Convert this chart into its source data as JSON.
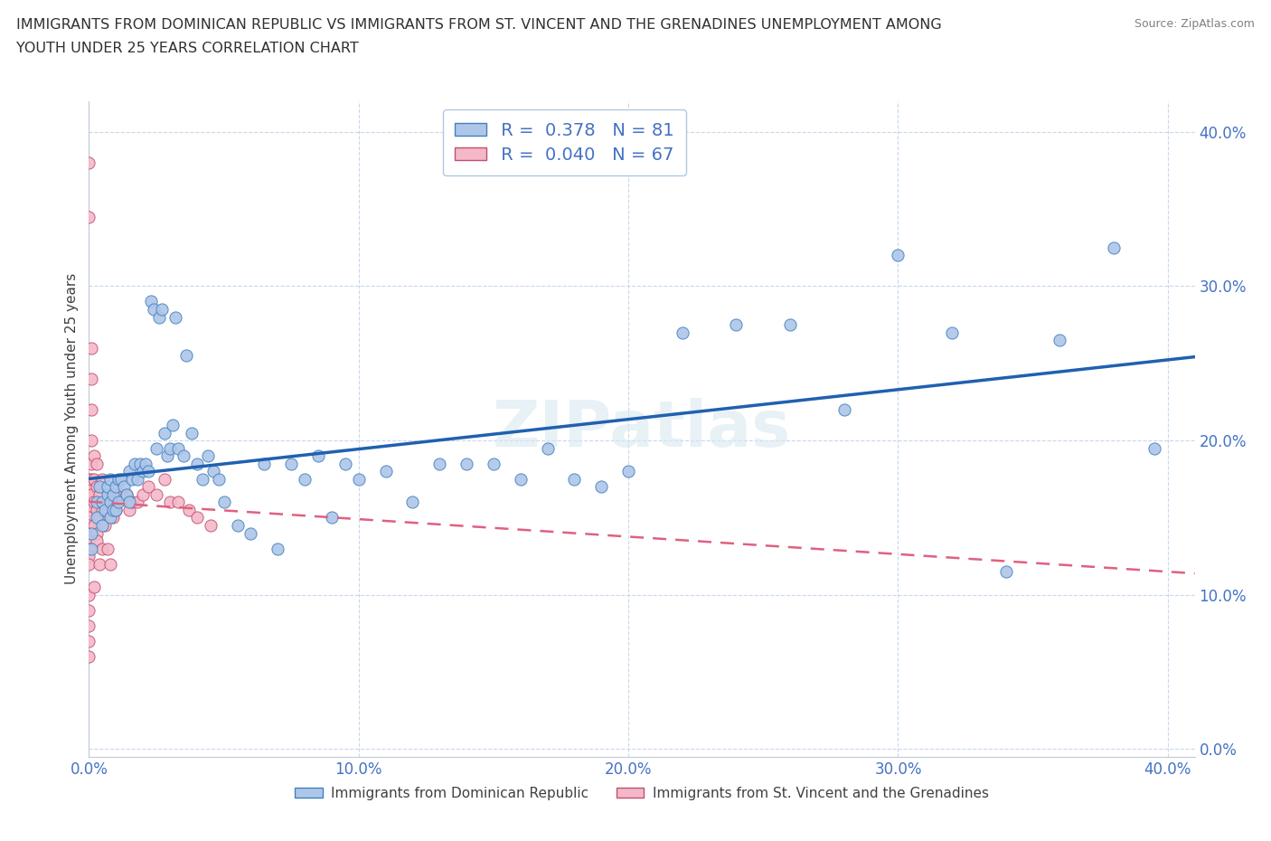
{
  "title_line1": "IMMIGRANTS FROM DOMINICAN REPUBLIC VS IMMIGRANTS FROM ST. VINCENT AND THE GRENADINES UNEMPLOYMENT AMONG",
  "title_line2": "YOUTH UNDER 25 YEARS CORRELATION CHART",
  "source": "Source: ZipAtlas.com",
  "ylabel": "Unemployment Among Youth under 25 years",
  "r_blue": 0.378,
  "n_blue": 81,
  "r_pink": 0.04,
  "n_pink": 67,
  "blue_color": "#aec6e8",
  "pink_color": "#f4b8c8",
  "blue_line_color": "#2060b0",
  "pink_line_color": "#e06080",
  "blue_edge_color": "#4080c0",
  "pink_edge_color": "#c05070",
  "legend_label_blue": "Immigrants from Dominican Republic",
  "legend_label_pink": "Immigrants from St. Vincent and the Grenadines",
  "xlim": [
    0.0,
    0.41
  ],
  "ylim": [
    -0.005,
    0.42
  ],
  "xticks": [
    0.0,
    0.1,
    0.2,
    0.3,
    0.4
  ],
  "yticks": [
    0.0,
    0.1,
    0.2,
    0.3,
    0.4
  ],
  "blue_x": [
    0.001,
    0.001,
    0.003,
    0.003,
    0.004,
    0.005,
    0.005,
    0.006,
    0.007,
    0.007,
    0.008,
    0.008,
    0.008,
    0.009,
    0.009,
    0.01,
    0.01,
    0.011,
    0.011,
    0.012,
    0.013,
    0.014,
    0.015,
    0.015,
    0.016,
    0.017,
    0.018,
    0.019,
    0.02,
    0.021,
    0.022,
    0.023,
    0.024,
    0.025,
    0.026,
    0.027,
    0.028,
    0.029,
    0.03,
    0.031,
    0.032,
    0.033,
    0.035,
    0.036,
    0.038,
    0.04,
    0.042,
    0.044,
    0.046,
    0.048,
    0.05,
    0.055,
    0.06,
    0.065,
    0.07,
    0.075,
    0.08,
    0.085,
    0.09,
    0.095,
    0.1,
    0.11,
    0.12,
    0.13,
    0.14,
    0.15,
    0.16,
    0.17,
    0.18,
    0.19,
    0.2,
    0.22,
    0.24,
    0.26,
    0.28,
    0.3,
    0.32,
    0.34,
    0.36,
    0.38,
    0.395
  ],
  "blue_y": [
    0.14,
    0.13,
    0.16,
    0.15,
    0.17,
    0.145,
    0.16,
    0.155,
    0.165,
    0.17,
    0.16,
    0.175,
    0.15,
    0.165,
    0.155,
    0.17,
    0.155,
    0.175,
    0.16,
    0.175,
    0.17,
    0.165,
    0.18,
    0.16,
    0.175,
    0.185,
    0.175,
    0.185,
    0.18,
    0.185,
    0.18,
    0.29,
    0.285,
    0.195,
    0.28,
    0.285,
    0.205,
    0.19,
    0.195,
    0.21,
    0.28,
    0.195,
    0.19,
    0.255,
    0.205,
    0.185,
    0.175,
    0.19,
    0.18,
    0.175,
    0.16,
    0.145,
    0.14,
    0.185,
    0.13,
    0.185,
    0.175,
    0.19,
    0.15,
    0.185,
    0.175,
    0.18,
    0.16,
    0.185,
    0.185,
    0.185,
    0.175,
    0.195,
    0.175,
    0.17,
    0.18,
    0.27,
    0.275,
    0.275,
    0.22,
    0.32,
    0.27,
    0.115,
    0.265,
    0.325,
    0.195
  ],
  "pink_x": [
    0.0,
    0.0,
    0.0,
    0.0,
    0.0,
    0.0,
    0.0,
    0.0,
    0.0,
    0.0,
    0.0,
    0.0,
    0.0,
    0.0,
    0.0,
    0.0,
    0.0,
    0.0,
    0.0,
    0.0,
    0.0,
    0.001,
    0.001,
    0.001,
    0.001,
    0.001,
    0.001,
    0.001,
    0.002,
    0.002,
    0.002,
    0.002,
    0.003,
    0.003,
    0.003,
    0.003,
    0.004,
    0.004,
    0.005,
    0.005,
    0.006,
    0.007,
    0.008,
    0.009,
    0.01,
    0.011,
    0.012,
    0.014,
    0.015,
    0.016,
    0.018,
    0.02,
    0.022,
    0.025,
    0.028,
    0.03,
    0.033,
    0.037,
    0.04,
    0.045,
    0.002,
    0.003,
    0.004,
    0.005,
    0.006,
    0.007,
    0.008
  ],
  "pink_y": [
    0.38,
    0.345,
    0.155,
    0.145,
    0.165,
    0.175,
    0.17,
    0.16,
    0.155,
    0.15,
    0.145,
    0.14,
    0.135,
    0.13,
    0.125,
    0.12,
    0.1,
    0.09,
    0.08,
    0.07,
    0.06,
    0.26,
    0.24,
    0.22,
    0.2,
    0.185,
    0.175,
    0.165,
    0.19,
    0.175,
    0.16,
    0.145,
    0.185,
    0.17,
    0.155,
    0.14,
    0.165,
    0.15,
    0.175,
    0.155,
    0.16,
    0.155,
    0.165,
    0.15,
    0.155,
    0.165,
    0.165,
    0.165,
    0.155,
    0.16,
    0.16,
    0.165,
    0.17,
    0.165,
    0.175,
    0.16,
    0.16,
    0.155,
    0.15,
    0.145,
    0.105,
    0.135,
    0.12,
    0.13,
    0.145,
    0.13,
    0.12
  ]
}
